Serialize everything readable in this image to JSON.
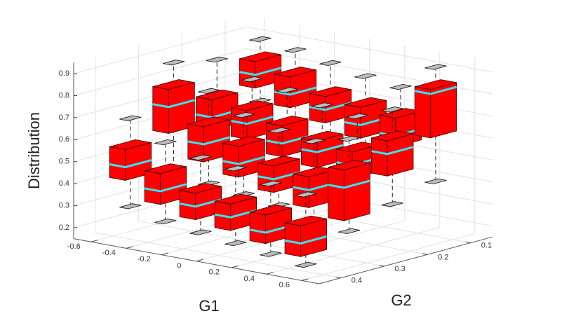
{
  "chart_data": {
    "type": "box3d",
    "xlabel": "G1",
    "ylabel": "G2",
    "zlabel": "Distribution",
    "xlim": [
      -0.7,
      0.7
    ],
    "ylim": [
      0.05,
      0.45
    ],
    "zlim": [
      0.15,
      0.95
    ],
    "xticks": [
      -0.6,
      -0.4,
      -0.2,
      0,
      0.2,
      0.4,
      0.6
    ],
    "yticks": [
      0.1,
      0.2,
      0.3,
      0.4
    ],
    "zticks": [
      0.2,
      0.3,
      0.4,
      0.5,
      0.6,
      0.7,
      0.8,
      0.9
    ],
    "grid": true,
    "color": "#ff0000",
    "median_color": "#33e6f0",
    "boxes": [
      {
        "g1": -0.5,
        "g2": 0.1,
        "min": 0.62,
        "q1": 0.7,
        "median": 0.76,
        "q3": 0.82,
        "max": 0.9
      },
      {
        "g1": -0.3,
        "g2": 0.1,
        "min": 0.55,
        "q1": 0.64,
        "median": 0.7,
        "q3": 0.78,
        "max": 0.88
      },
      {
        "g1": -0.1,
        "g2": 0.1,
        "min": 0.5,
        "q1": 0.6,
        "median": 0.66,
        "q3": 0.72,
        "max": 0.85
      },
      {
        "g1": 0.1,
        "g2": 0.1,
        "min": 0.48,
        "q1": 0.56,
        "median": 0.62,
        "q3": 0.7,
        "max": 0.82
      },
      {
        "g1": 0.3,
        "g2": 0.1,
        "min": 0.45,
        "q1": 0.55,
        "median": 0.6,
        "q3": 0.68,
        "max": 0.8
      },
      {
        "g1": 0.5,
        "g2": 0.1,
        "min": 0.4,
        "q1": 0.62,
        "median": 0.82,
        "q3": 0.84,
        "max": 0.92
      },
      {
        "g1": -0.5,
        "g2": 0.2,
        "min": 0.48,
        "q1": 0.56,
        "median": 0.62,
        "q3": 0.7,
        "max": 0.86
      },
      {
        "g1": -0.3,
        "g2": 0.2,
        "min": 0.45,
        "q1": 0.55,
        "median": 0.62,
        "q3": 0.68,
        "max": 0.8
      },
      {
        "g1": -0.1,
        "g2": 0.2,
        "min": 0.42,
        "q1": 0.5,
        "median": 0.56,
        "q3": 0.64,
        "max": 0.78
      },
      {
        "g1": 0.1,
        "g2": 0.2,
        "min": 0.4,
        "q1": 0.48,
        "median": 0.55,
        "q3": 0.6,
        "max": 0.74
      },
      {
        "g1": 0.3,
        "g2": 0.2,
        "min": 0.38,
        "q1": 0.46,
        "median": 0.52,
        "q3": 0.58,
        "max": 0.72
      },
      {
        "g1": 0.5,
        "g2": 0.2,
        "min": 0.35,
        "q1": 0.5,
        "median": 0.6,
        "q3": 0.66,
        "max": 0.78
      },
      {
        "g1": -0.5,
        "g2": 0.3,
        "min": 0.42,
        "q1": 0.6,
        "median": 0.72,
        "q3": 0.8,
        "max": 0.9
      },
      {
        "g1": -0.3,
        "g2": 0.3,
        "min": 0.38,
        "q1": 0.5,
        "median": 0.58,
        "q3": 0.66,
        "max": 0.8
      },
      {
        "g1": -0.1,
        "g2": 0.3,
        "min": 0.36,
        "q1": 0.46,
        "median": 0.52,
        "q3": 0.6,
        "max": 0.72
      },
      {
        "g1": 0.1,
        "g2": 0.3,
        "min": 0.34,
        "q1": 0.42,
        "median": 0.48,
        "q3": 0.54,
        "max": 0.68
      },
      {
        "g1": 0.3,
        "g2": 0.3,
        "min": 0.3,
        "q1": 0.38,
        "median": 0.46,
        "q3": 0.52,
        "max": 0.66
      },
      {
        "g1": 0.5,
        "g2": 0.3,
        "min": 0.28,
        "q1": 0.35,
        "median": 0.5,
        "q3": 0.58,
        "max": 0.7
      },
      {
        "g1": -0.5,
        "g2": 0.4,
        "min": 0.3,
        "q1": 0.44,
        "median": 0.5,
        "q3": 0.58,
        "max": 0.7
      },
      {
        "g1": -0.3,
        "g2": 0.4,
        "min": 0.26,
        "q1": 0.36,
        "median": 0.42,
        "q3": 0.5,
        "max": 0.62
      },
      {
        "g1": -0.1,
        "g2": 0.4,
        "min": 0.24,
        "q1": 0.32,
        "median": 0.38,
        "q3": 0.44,
        "max": 0.58
      },
      {
        "g1": 0.1,
        "g2": 0.4,
        "min": 0.22,
        "q1": 0.3,
        "median": 0.36,
        "q3": 0.42,
        "max": 0.56
      },
      {
        "g1": 0.3,
        "g2": 0.4,
        "min": 0.2,
        "q1": 0.27,
        "median": 0.32,
        "q3": 0.4,
        "max": 0.52
      },
      {
        "g1": 0.5,
        "g2": 0.4,
        "min": 0.18,
        "q1": 0.24,
        "median": 0.3,
        "q3": 0.38,
        "max": 0.5
      }
    ]
  }
}
